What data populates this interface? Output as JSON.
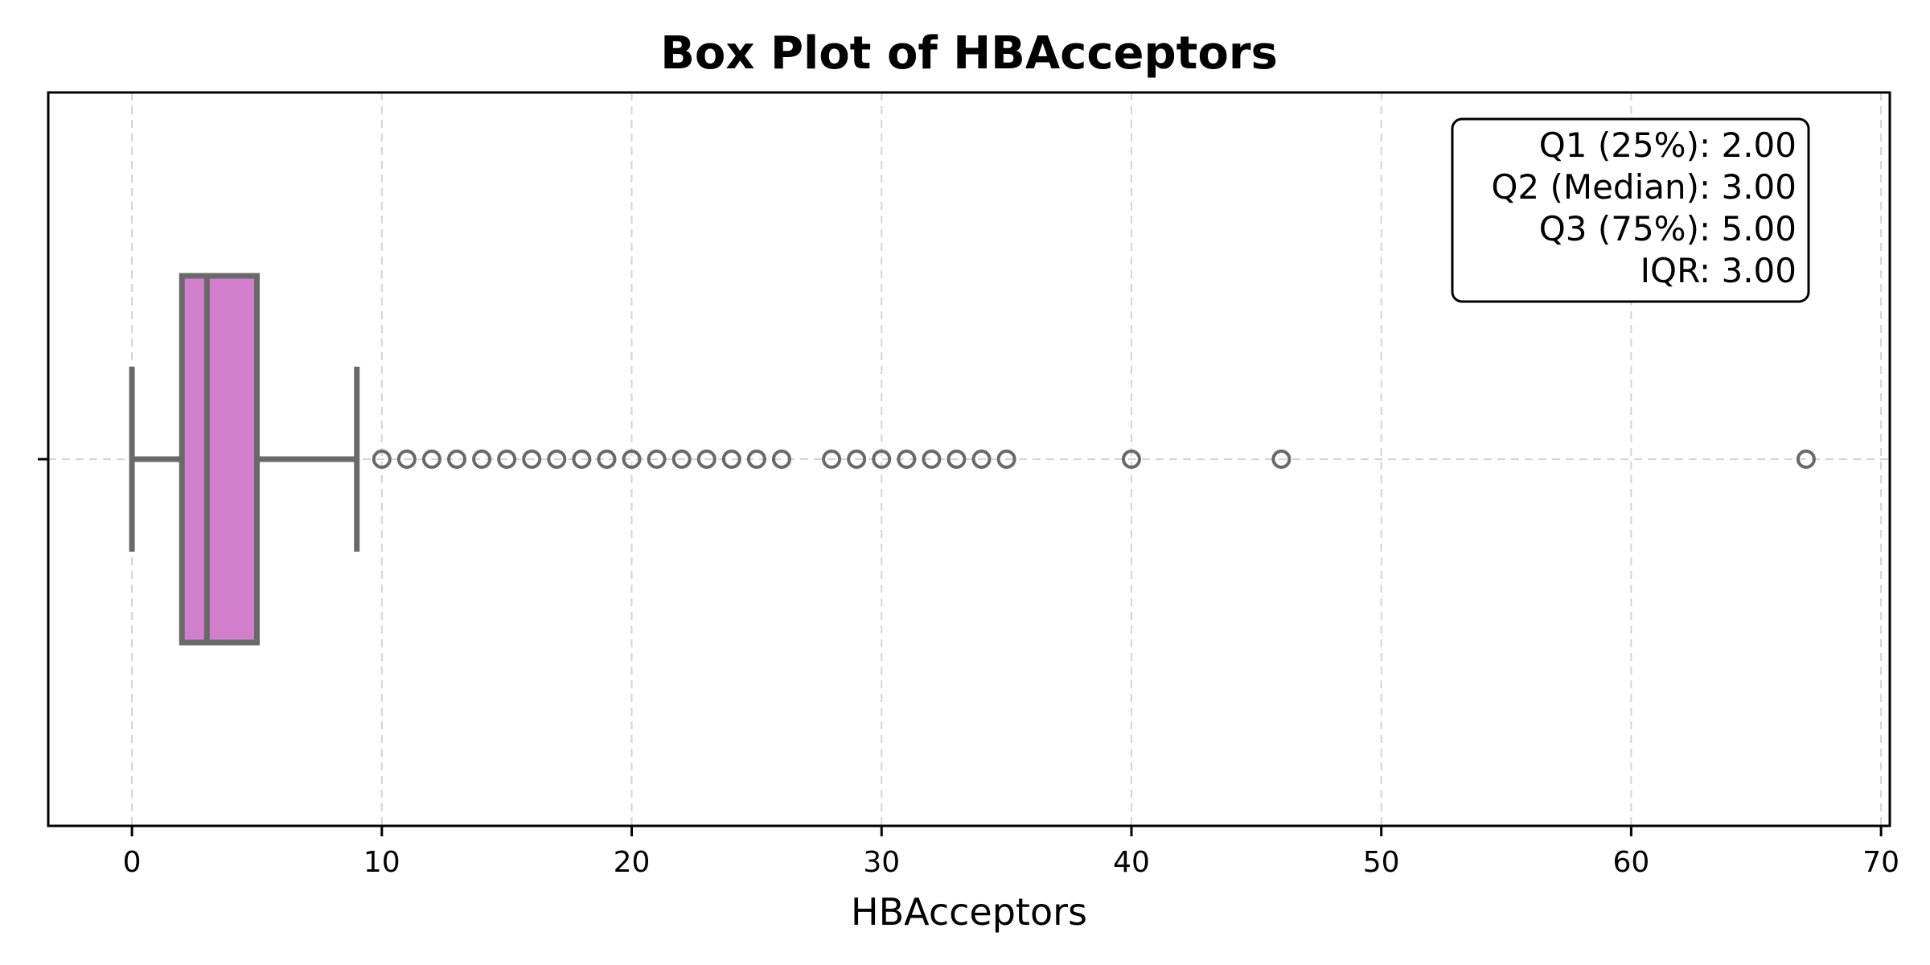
{
  "chart_data": {
    "type": "box",
    "title": "Box Plot of HBAcceptors",
    "xlabel": "HBAcceptors",
    "ylabel": "",
    "xlim": [
      -3.35,
      70.35
    ],
    "x_ticks": [
      0,
      10,
      20,
      30,
      40,
      50,
      60,
      70
    ],
    "grid": true,
    "orientation": "horizontal",
    "box_color": "#d17fcd",
    "line_color": "#696969",
    "box": {
      "whisker_low": 0,
      "q1": 2,
      "median": 3,
      "q3": 5,
      "whisker_high": 9
    },
    "outliers": [
      10,
      11,
      12,
      13,
      14,
      15,
      16,
      17,
      18,
      19,
      20,
      21,
      22,
      23,
      24,
      25,
      26,
      28,
      29,
      30,
      31,
      32,
      33,
      34,
      35,
      40,
      46,
      67
    ],
    "stats_box": {
      "placement": "top-right",
      "lines": [
        "Q1 (25%): 2.00",
        "Q2 (Median): 3.00",
        "Q3 (75%): 5.00",
        "IQR: 3.00"
      ]
    }
  }
}
